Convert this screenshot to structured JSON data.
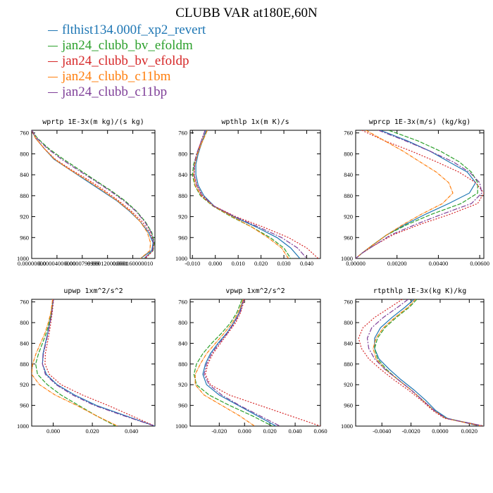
{
  "title": "CLUBB VAR at180E,60N",
  "legend": [
    {
      "label": "flthist134.000f_xp2_revert",
      "color": "#1f77b4"
    },
    {
      "label": "jan24_clubb_bv_efoldm",
      "color": "#2ca02c"
    },
    {
      "label": "jan24_clubb_bv_efoldp",
      "color": "#d62728"
    },
    {
      "label": "jan24_clubb_c11bm",
      "color": "#ff7f0e"
    },
    {
      "label": "jan24_clubb_c11bp",
      "color": "#7f3f98"
    }
  ],
  "chart_data": [
    {
      "type": "line",
      "title": "wprtp  1E-3x(m kg)/(s kg)",
      "xlim": [
        0,
        0.000195
      ],
      "xticks": [
        0.0,
        4e-05,
        8e-05,
        0.00012,
        0.00016
      ],
      "xtick_labels": [
        "0.00000000",
        "0.00004000000",
        "0.0000799999",
        "0.000120000001",
        "0.000160000010"
      ],
      "ylim": [
        755,
        1000
      ],
      "yticks": [
        760,
        800,
        840,
        880,
        920,
        960,
        1000
      ],
      "y": [
        755,
        770,
        790,
        810,
        830,
        850,
        870,
        890,
        910,
        930,
        950,
        970,
        985,
        1000
      ],
      "series": [
        {
          "name": "flthist134.000f_xp2_revert",
          "values": [
            0.0,
            6e-06,
            2e-05,
            3.5e-05,
            6e-05,
            8.5e-05,
            0.00011,
            0.000135,
            0.000155,
            0.000172,
            0.000185,
            0.000192,
            0.00019,
            0.000172
          ]
        },
        {
          "name": "jan24_clubb_bv_efoldm",
          "values": [
            0.0,
            9e-06,
            2.7e-05,
            5e-05,
            7.5e-05,
            0.0001,
            0.000125,
            0.000148,
            0.000166,
            0.00018,
            0.00019,
            0.000194,
            0.000192,
            0.000178
          ]
        },
        {
          "name": "jan24_clubb_bv_efoldp",
          "values": [
            0.0,
            6e-06,
            2e-05,
            3.7e-05,
            6.2e-05,
            9e-05,
            0.000115,
            0.000138,
            0.000158,
            0.000175,
            0.000187,
            0.000193,
            0.000192,
            0.00018
          ]
        },
        {
          "name": "jan24_clubb_c11bm",
          "values": [
            0.0,
            6e-06,
            2e-05,
            3.6e-05,
            6e-05,
            8.7e-05,
            0.000112,
            0.000136,
            0.000156,
            0.000172,
            0.000183,
            0.000188,
            0.000187,
            0.000172
          ]
        },
        {
          "name": "jan24_clubb_c11bp",
          "values": [
            0.0,
            8e-06,
            2.5e-05,
            4.7e-05,
            7.2e-05,
            9.8e-05,
            0.000123,
            0.000146,
            0.000165,
            0.000179,
            0.000189,
            0.000193,
            0.000191,
            0.000178
          ]
        }
      ]
    },
    {
      "type": "line",
      "title": "wpthlp  1x(m K)/s",
      "xlim": [
        -0.011,
        0.046
      ],
      "xticks": [
        -0.01,
        0.0,
        0.01,
        0.02,
        0.03,
        0.04
      ],
      "xtick_labels": [
        "-0.010",
        "0.000",
        "0.010",
        "0.020",
        "0.030",
        "0.040"
      ],
      "ylim": [
        755,
        1000
      ],
      "yticks": [
        760,
        800,
        840,
        880,
        920,
        960,
        1000
      ],
      "y": [
        755,
        780,
        800,
        820,
        840,
        860,
        880,
        900,
        920,
        940,
        960,
        980,
        1000
      ],
      "series": [
        {
          "name": "flthist134.000f_xp2_revert",
          "values": [
            -0.004,
            -0.006,
            -0.0075,
            -0.0085,
            -0.0085,
            -0.0075,
            -0.005,
            -0.0005,
            0.008,
            0.018,
            0.027,
            0.033,
            0.037
          ]
        },
        {
          "name": "jan24_clubb_bv_efoldm",
          "values": [
            -0.0035,
            -0.006,
            -0.008,
            -0.0095,
            -0.01,
            -0.009,
            -0.0065,
            -0.001,
            0.007,
            0.016,
            0.024,
            0.03,
            0.033
          ]
        },
        {
          "name": "jan24_clubb_bv_efoldp",
          "values": [
            -0.0045,
            -0.0065,
            -0.008,
            -0.009,
            -0.0092,
            -0.008,
            -0.0055,
            -0.0005,
            0.009,
            0.021,
            0.032,
            0.04,
            0.045
          ]
        },
        {
          "name": "jan24_clubb_c11bm",
          "values": [
            -0.0035,
            -0.006,
            -0.0078,
            -0.009,
            -0.0095,
            -0.0088,
            -0.0062,
            -0.0008,
            0.0075,
            0.016,
            0.023,
            0.029,
            0.032
          ]
        },
        {
          "name": "jan24_clubb_c11bp",
          "values": [
            -0.0045,
            -0.0065,
            -0.0082,
            -0.0092,
            -0.0093,
            -0.0082,
            -0.0058,
            -0.0006,
            0.0085,
            0.019,
            0.029,
            0.036,
            0.04
          ]
        }
      ]
    },
    {
      "type": "line",
      "title": "wprcp  1E-3x(m/s) (kg/kg)",
      "xlim": [
        0,
        0.0062
      ],
      "xticks": [
        0.0,
        0.002,
        0.004,
        0.006
      ],
      "xtick_labels": [
        "0.00000",
        "0.00200",
        "0.00400",
        "0.00600"
      ],
      "ylim": [
        755,
        1000
      ],
      "yticks": [
        760,
        800,
        840,
        880,
        920,
        960,
        1000
      ],
      "y": [
        755,
        775,
        795,
        815,
        835,
        855,
        875,
        895,
        915,
        935,
        955,
        975,
        990,
        1000
      ],
      "series": [
        {
          "name": "flthist134.000f_xp2_revert",
          "values": [
            0.0012,
            0.0025,
            0.0036,
            0.0045,
            0.0054,
            0.0058,
            0.0055,
            0.0045,
            0.0034,
            0.0024,
            0.0015,
            0.0008,
            0.0003,
            0.0
          ]
        },
        {
          "name": "jan24_clubb_bv_efoldm",
          "values": [
            0.0016,
            0.003,
            0.0041,
            0.005,
            0.0056,
            0.0059,
            0.0059,
            0.0051,
            0.0037,
            0.0025,
            0.0015,
            0.0008,
            0.0003,
            0.0
          ]
        },
        {
          "name": "jan24_clubb_bv_efoldp",
          "values": [
            0.0003,
            0.0014,
            0.0027,
            0.0039,
            0.005,
            0.0058,
            0.0062,
            0.0059,
            0.0046,
            0.0031,
            0.0018,
            0.0009,
            0.0003,
            0.0
          ]
        },
        {
          "name": "jan24_clubb_c11bm",
          "values": [
            0.0005,
            0.0014,
            0.0023,
            0.0031,
            0.0039,
            0.0045,
            0.0047,
            0.0042,
            0.0032,
            0.0023,
            0.0015,
            0.0008,
            0.0003,
            0.0
          ]
        },
        {
          "name": "jan24_clubb_c11bp",
          "values": [
            0.0011,
            0.0024,
            0.0036,
            0.0047,
            0.0055,
            0.006,
            0.0061,
            0.0056,
            0.0042,
            0.0029,
            0.0017,
            0.0009,
            0.0003,
            0.0
          ]
        }
      ]
    },
    {
      "type": "line",
      "title": "upwp  1xm^2/s^2",
      "xlim": [
        -0.011,
        0.052
      ],
      "xticks": [
        0.0,
        0.02,
        0.04
      ],
      "xtick_labels": [
        "0.000",
        "0.020",
        "0.040"
      ],
      "ylim": [
        755,
        1000
      ],
      "yticks": [
        760,
        800,
        840,
        880,
        920,
        960,
        1000
      ],
      "y": [
        755,
        780,
        800,
        820,
        840,
        860,
        880,
        900,
        920,
        940,
        960,
        980,
        1000
      ],
      "series": [
        {
          "name": "flthist134.000f_xp2_revert",
          "values": [
            0.0,
            -0.0008,
            -0.0018,
            -0.0028,
            -0.004,
            -0.0052,
            -0.0055,
            -0.0035,
            0.002,
            0.011,
            0.022,
            0.037,
            0.052
          ]
        },
        {
          "name": "jan24_clubb_bv_efoldm",
          "values": [
            -0.0002,
            -0.001,
            -0.002,
            -0.0035,
            -0.0055,
            -0.0075,
            -0.009,
            -0.008,
            -0.003,
            0.004,
            0.013,
            0.022,
            0.032
          ]
        },
        {
          "name": "jan24_clubb_bv_efoldp",
          "values": [
            0.0002,
            -0.0005,
            -0.0012,
            -0.002,
            -0.003,
            -0.004,
            -0.0042,
            -0.002,
            0.004,
            0.015,
            0.028,
            0.04,
            0.052
          ]
        },
        {
          "name": "jan24_clubb_c11bm",
          "values": [
            -0.0003,
            -0.0012,
            -0.0025,
            -0.0042,
            -0.0065,
            -0.0088,
            -0.0105,
            -0.011,
            -0.007,
            0.001,
            0.012,
            0.022,
            0.033
          ]
        },
        {
          "name": "jan24_clubb_c11bp",
          "values": [
            0.0001,
            -0.0007,
            -0.0016,
            -0.0026,
            -0.0038,
            -0.005,
            -0.0055,
            -0.004,
            0.0015,
            0.01,
            0.021,
            0.036,
            0.052
          ]
        }
      ]
    },
    {
      "type": "line",
      "title": "vpwp  1xm^2/s^2",
      "xlim": [
        -0.043,
        0.06
      ],
      "xticks": [
        -0.02,
        0.0,
        0.02,
        0.04,
        0.06
      ],
      "xtick_labels": [
        "-0.020",
        "0.000",
        "0.020",
        "0.040",
        "0.060"
      ],
      "ylim": [
        755,
        1000
      ],
      "yticks": [
        760,
        800,
        840,
        880,
        920,
        960,
        1000
      ],
      "y": [
        755,
        780,
        800,
        820,
        840,
        860,
        880,
        900,
        920,
        940,
        960,
        980,
        1000
      ],
      "series": [
        {
          "name": "flthist134.000f_xp2_revert",
          "values": [
            -0.001,
            -0.004,
            -0.0085,
            -0.014,
            -0.021,
            -0.027,
            -0.031,
            -0.033,
            -0.03,
            -0.02,
            -0.005,
            0.01,
            0.025
          ]
        },
        {
          "name": "jan24_clubb_bv_efoldm",
          "values": [
            -0.002,
            -0.006,
            -0.011,
            -0.018,
            -0.026,
            -0.033,
            -0.038,
            -0.04,
            -0.038,
            -0.028,
            -0.012,
            0.006,
            0.022
          ]
        },
        {
          "name": "jan24_clubb_bv_efoldp",
          "values": [
            0.0,
            -0.003,
            -0.007,
            -0.013,
            -0.019,
            -0.025,
            -0.029,
            -0.031,
            -0.027,
            -0.012,
            0.012,
            0.036,
            0.06
          ]
        },
        {
          "name": "jan24_clubb_c11bm",
          "values": [
            -0.001,
            -0.005,
            -0.0095,
            -0.016,
            -0.023,
            -0.03,
            -0.035,
            -0.039,
            -0.039,
            -0.032,
            -0.018,
            -0.004,
            0.008
          ]
        },
        {
          "name": "jan24_clubb_c11bp",
          "values": [
            -0.0005,
            -0.0035,
            -0.008,
            -0.0135,
            -0.02,
            -0.026,
            -0.03,
            -0.032,
            -0.028,
            -0.018,
            -0.004,
            0.012,
            0.028
          ]
        }
      ]
    },
    {
      "type": "line",
      "title": "rtpthlp  1E-3x(kg K)/kg",
      "xlim": [
        -0.0058,
        0.003
      ],
      "xticks": [
        -0.004,
        -0.002,
        0.0,
        0.002
      ],
      "xtick_labels": [
        "-0.0040",
        "-0.0020",
        "0.0000",
        "0.0020"
      ],
      "ylim": [
        755,
        1000
      ],
      "yticks": [
        760,
        800,
        840,
        880,
        920,
        960,
        1000
      ],
      "y": [
        755,
        770,
        790,
        810,
        830,
        850,
        870,
        890,
        910,
        930,
        950,
        970,
        985,
        1000
      ],
      "series": [
        {
          "name": "flthist134.000f_xp2_revert",
          "values": [
            -0.0018,
            -0.0024,
            -0.0033,
            -0.0041,
            -0.0045,
            -0.0045,
            -0.0042,
            -0.0035,
            -0.0027,
            -0.0018,
            -0.001,
            -0.0003,
            0.0005,
            0.0027
          ]
        },
        {
          "name": "jan24_clubb_bv_efoldm",
          "values": [
            -0.0016,
            -0.0021,
            -0.003,
            -0.0038,
            -0.0043,
            -0.0045,
            -0.0043,
            -0.0037,
            -0.0029,
            -0.002,
            -0.0012,
            -0.0004,
            0.0004,
            0.003
          ]
        },
        {
          "name": "jan24_clubb_bv_efoldp",
          "values": [
            -0.0026,
            -0.0034,
            -0.0045,
            -0.0053,
            -0.0056,
            -0.0054,
            -0.0049,
            -0.0041,
            -0.0032,
            -0.0022,
            -0.0013,
            -0.0005,
            0.0003,
            0.003
          ]
        },
        {
          "name": "jan24_clubb_c11bm",
          "values": [
            -0.0017,
            -0.0022,
            -0.0031,
            -0.0039,
            -0.0044,
            -0.0046,
            -0.0044,
            -0.0038,
            -0.0029,
            -0.002,
            -0.0012,
            -0.0004,
            0.0004,
            0.0028
          ]
        },
        {
          "name": "jan24_clubb_c11bp",
          "values": [
            -0.0022,
            -0.0029,
            -0.0039,
            -0.0047,
            -0.005,
            -0.0049,
            -0.0045,
            -0.0038,
            -0.0029,
            -0.002,
            -0.0012,
            -0.0004,
            0.0004,
            0.003
          ]
        }
      ]
    }
  ]
}
